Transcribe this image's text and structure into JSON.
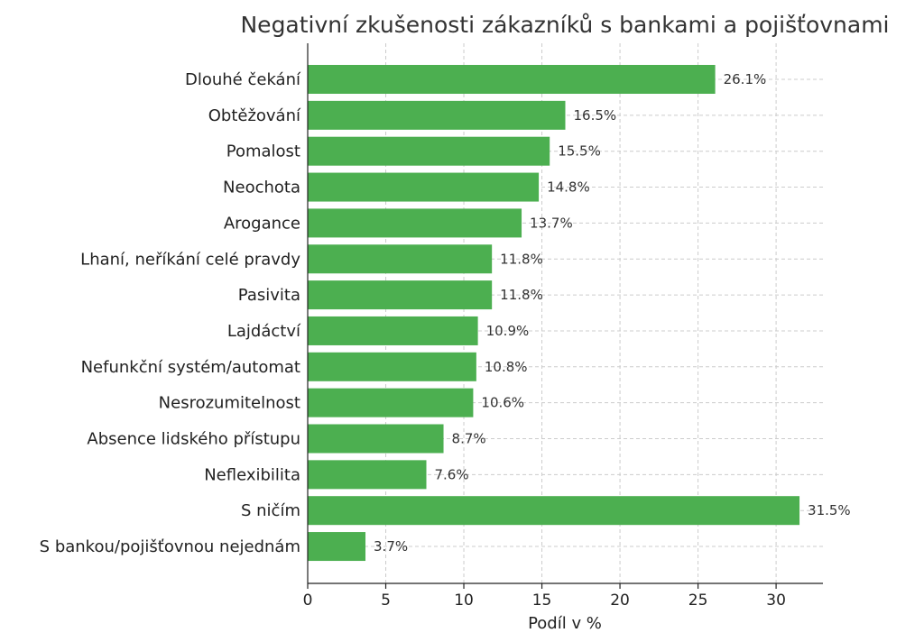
{
  "chart_data": {
    "type": "bar",
    "orientation": "horizontal",
    "title": "Negativní zkušenosti zákazníků s bankami a pojišťovnami",
    "xlabel": "Podíl v %",
    "ylabel": "",
    "xlim": [
      0,
      33
    ],
    "xticks": [
      0,
      5,
      10,
      15,
      20,
      25,
      30
    ],
    "grid": true,
    "bar_color": "#4CAF50",
    "categories": [
      "Dlouhé čekání",
      "Obtěžování",
      "Pomalost",
      "Neochota",
      "Arogance",
      "Lhaní, neříkání celé pravdy",
      "Pasivita",
      "Lajdáctví",
      "Nefunkční systém/automat",
      "Nesrozumitelnost",
      "Absence lidského přístupu",
      "Neflexibilita",
      "S ničím",
      "S bankou/pojišťovnou nejednám"
    ],
    "values": [
      26.1,
      16.5,
      15.5,
      14.8,
      13.7,
      11.8,
      11.8,
      10.9,
      10.8,
      10.6,
      8.7,
      7.6,
      31.5,
      3.7
    ],
    "value_labels": [
      "26.1%",
      "16.5%",
      "15.5%",
      "14.8%",
      "13.7%",
      "11.8%",
      "11.8%",
      "10.9%",
      "10.8%",
      "10.6%",
      "8.7%",
      "7.6%",
      "31.5%",
      "3.7%"
    ]
  }
}
